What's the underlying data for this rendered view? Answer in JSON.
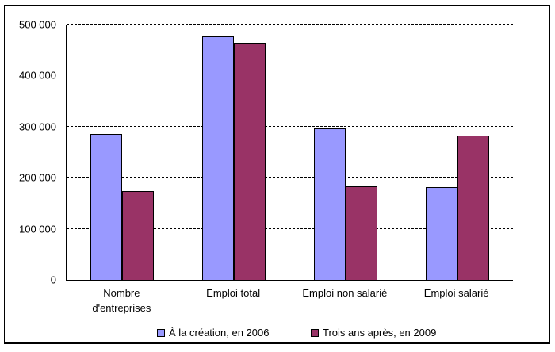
{
  "chart_data": {
    "type": "bar",
    "title": "",
    "xlabel": "",
    "ylabel": "",
    "categories": [
      "Nombre d'entreprises",
      "Emploi total",
      "Emploi non salarié",
      "Emploi salarié"
    ],
    "categories_display": [
      [
        "Nombre",
        "d'entreprises"
      ],
      [
        "Emploi total"
      ],
      [
        "Emploi non salarié"
      ],
      [
        "Emploi salarié"
      ]
    ],
    "series": [
      {
        "name": "À la création, en 2006",
        "color": "#9999FF",
        "values": [
          285000,
          477000,
          296000,
          181000
        ]
      },
      {
        "name": "Trois ans après, en 2009",
        "color": "#993366",
        "values": [
          174000,
          465000,
          183000,
          282000
        ]
      }
    ],
    "ylim": [
      0,
      500000
    ],
    "ytick_interval": 100000,
    "ytick_labels": [
      "0",
      "100 000",
      "200 000",
      "300 000",
      "400 000",
      "500 000"
    ],
    "grid": "horizontal-dashed",
    "legend_position": "bottom",
    "axis_color": "#000000",
    "background_color": "#ffffff"
  }
}
